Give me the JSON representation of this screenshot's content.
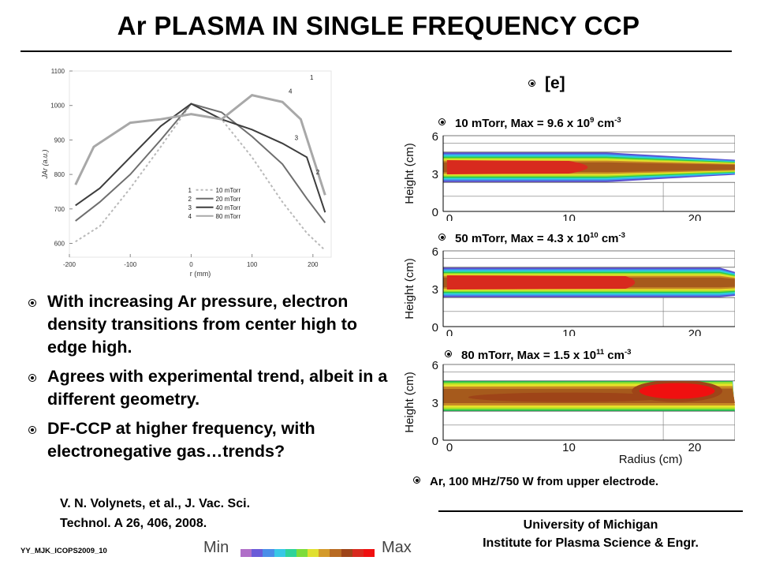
{
  "title": "Ar PLASMA IN SINGLE FREQUENCY CCP",
  "experiment_chart": {
    "ylabel": "J",
    "ylabel_sub": "Ar",
    "ylabel_unit": "(a.u.)",
    "xlabel": "r (mm)",
    "y_ticks": [
      "1100",
      "1000",
      "900",
      "800",
      "700",
      "600"
    ],
    "x_ticks": [
      "-200",
      "-100",
      "0",
      "100",
      "200"
    ],
    "legend": [
      {
        "num": "1",
        "label": "10 mTorr",
        "color": "#b9b9b9",
        "dash": "3,3"
      },
      {
        "num": "2",
        "label": "20 mTorr",
        "color": "#6e6e6e",
        "dash": ""
      },
      {
        "num": "3",
        "label": "40 mTorr",
        "color": "#3d3d3d",
        "dash": ""
      },
      {
        "num": "4",
        "label": "80 mTorr",
        "color": "#a8a8a8",
        "dash": ""
      }
    ],
    "curve_labels": [
      "1",
      "2",
      "3",
      "4"
    ]
  },
  "chart_data": {
    "type": "line",
    "xlabel": "r (mm)",
    "ylabel": "J_Ar (a.u.)",
    "xlim": [
      -200,
      230
    ],
    "ylim": [
      560,
      1100
    ],
    "series": [
      {
        "name": "10 mTorr",
        "x": [
          -190,
          -150,
          -100,
          -50,
          0,
          50,
          100,
          150,
          190,
          220
        ],
        "y": [
          605,
          650,
          760,
          880,
          1005,
          960,
          850,
          720,
          630,
          580
        ]
      },
      {
        "name": "20 mTorr",
        "x": [
          -190,
          -150,
          -100,
          -50,
          0,
          50,
          100,
          150,
          190,
          220
        ],
        "y": [
          665,
          720,
          800,
          900,
          1005,
          980,
          910,
          830,
          730,
          660
        ]
      },
      {
        "name": "40 mTorr",
        "x": [
          -190,
          -150,
          -100,
          -50,
          0,
          50,
          100,
          150,
          190,
          220
        ],
        "y": [
          710,
          760,
          850,
          940,
          1005,
          960,
          930,
          890,
          850,
          690
        ]
      },
      {
        "name": "80 mTorr",
        "x": [
          -190,
          -160,
          -100,
          -50,
          0,
          50,
          100,
          150,
          180,
          220
        ],
        "y": [
          770,
          880,
          950,
          960,
          975,
          960,
          1030,
          1010,
          960,
          740
        ]
      }
    ]
  },
  "bullets": [
    "With increasing Ar pressure, electron density transitions from center high to edge high.",
    "Agrees with experimental trend, albeit in a different geometry.",
    "DF-CCP at higher frequency, with electronegative gas…trends?"
  ],
  "reference": "V. N. Volynets, et al., J. Vac. Sci. Technol. A 26, 406, 2008.",
  "footer_id": "YY_MJK_ICOPS2009_10",
  "colorbar": {
    "min": "Min",
    "max": "Max",
    "colors": [
      "#b06fc8",
      "#6a5bd8",
      "#4a8ee8",
      "#38c8e6",
      "#2fd39a",
      "#7ddc3a",
      "#e0e030",
      "#d49a2a",
      "#b86a22",
      "#9e4418",
      "#d82a1e",
      "#f01010"
    ]
  },
  "contours": {
    "header": "[e]",
    "ylabel": "Height (cm)",
    "y_ticks": [
      "0",
      "3",
      "6"
    ],
    "x_ticks": [
      "0",
      "10",
      "20"
    ],
    "xlabel": "Radius (cm)",
    "panels": [
      {
        "text": "10 mTorr, Max = 9.6 x 10",
        "exp1": "9",
        "unit": " cm",
        "exp2": "-3"
      },
      {
        "text": "50 mTorr, Max = 4.3 x 10",
        "exp1": "10",
        "unit": " cm",
        "exp2": "-3"
      },
      {
        "text": "80 mTorr, Max = 1.5 x 10",
        "exp1": "11",
        "unit": " cm",
        "exp2": "-3"
      }
    ]
  },
  "caption": "Ar, 100 MHz/750 W from upper electrode.",
  "affiliation": {
    "line1": "University of Michigan",
    "line2": "Institute for Plasma Science & Engr."
  }
}
